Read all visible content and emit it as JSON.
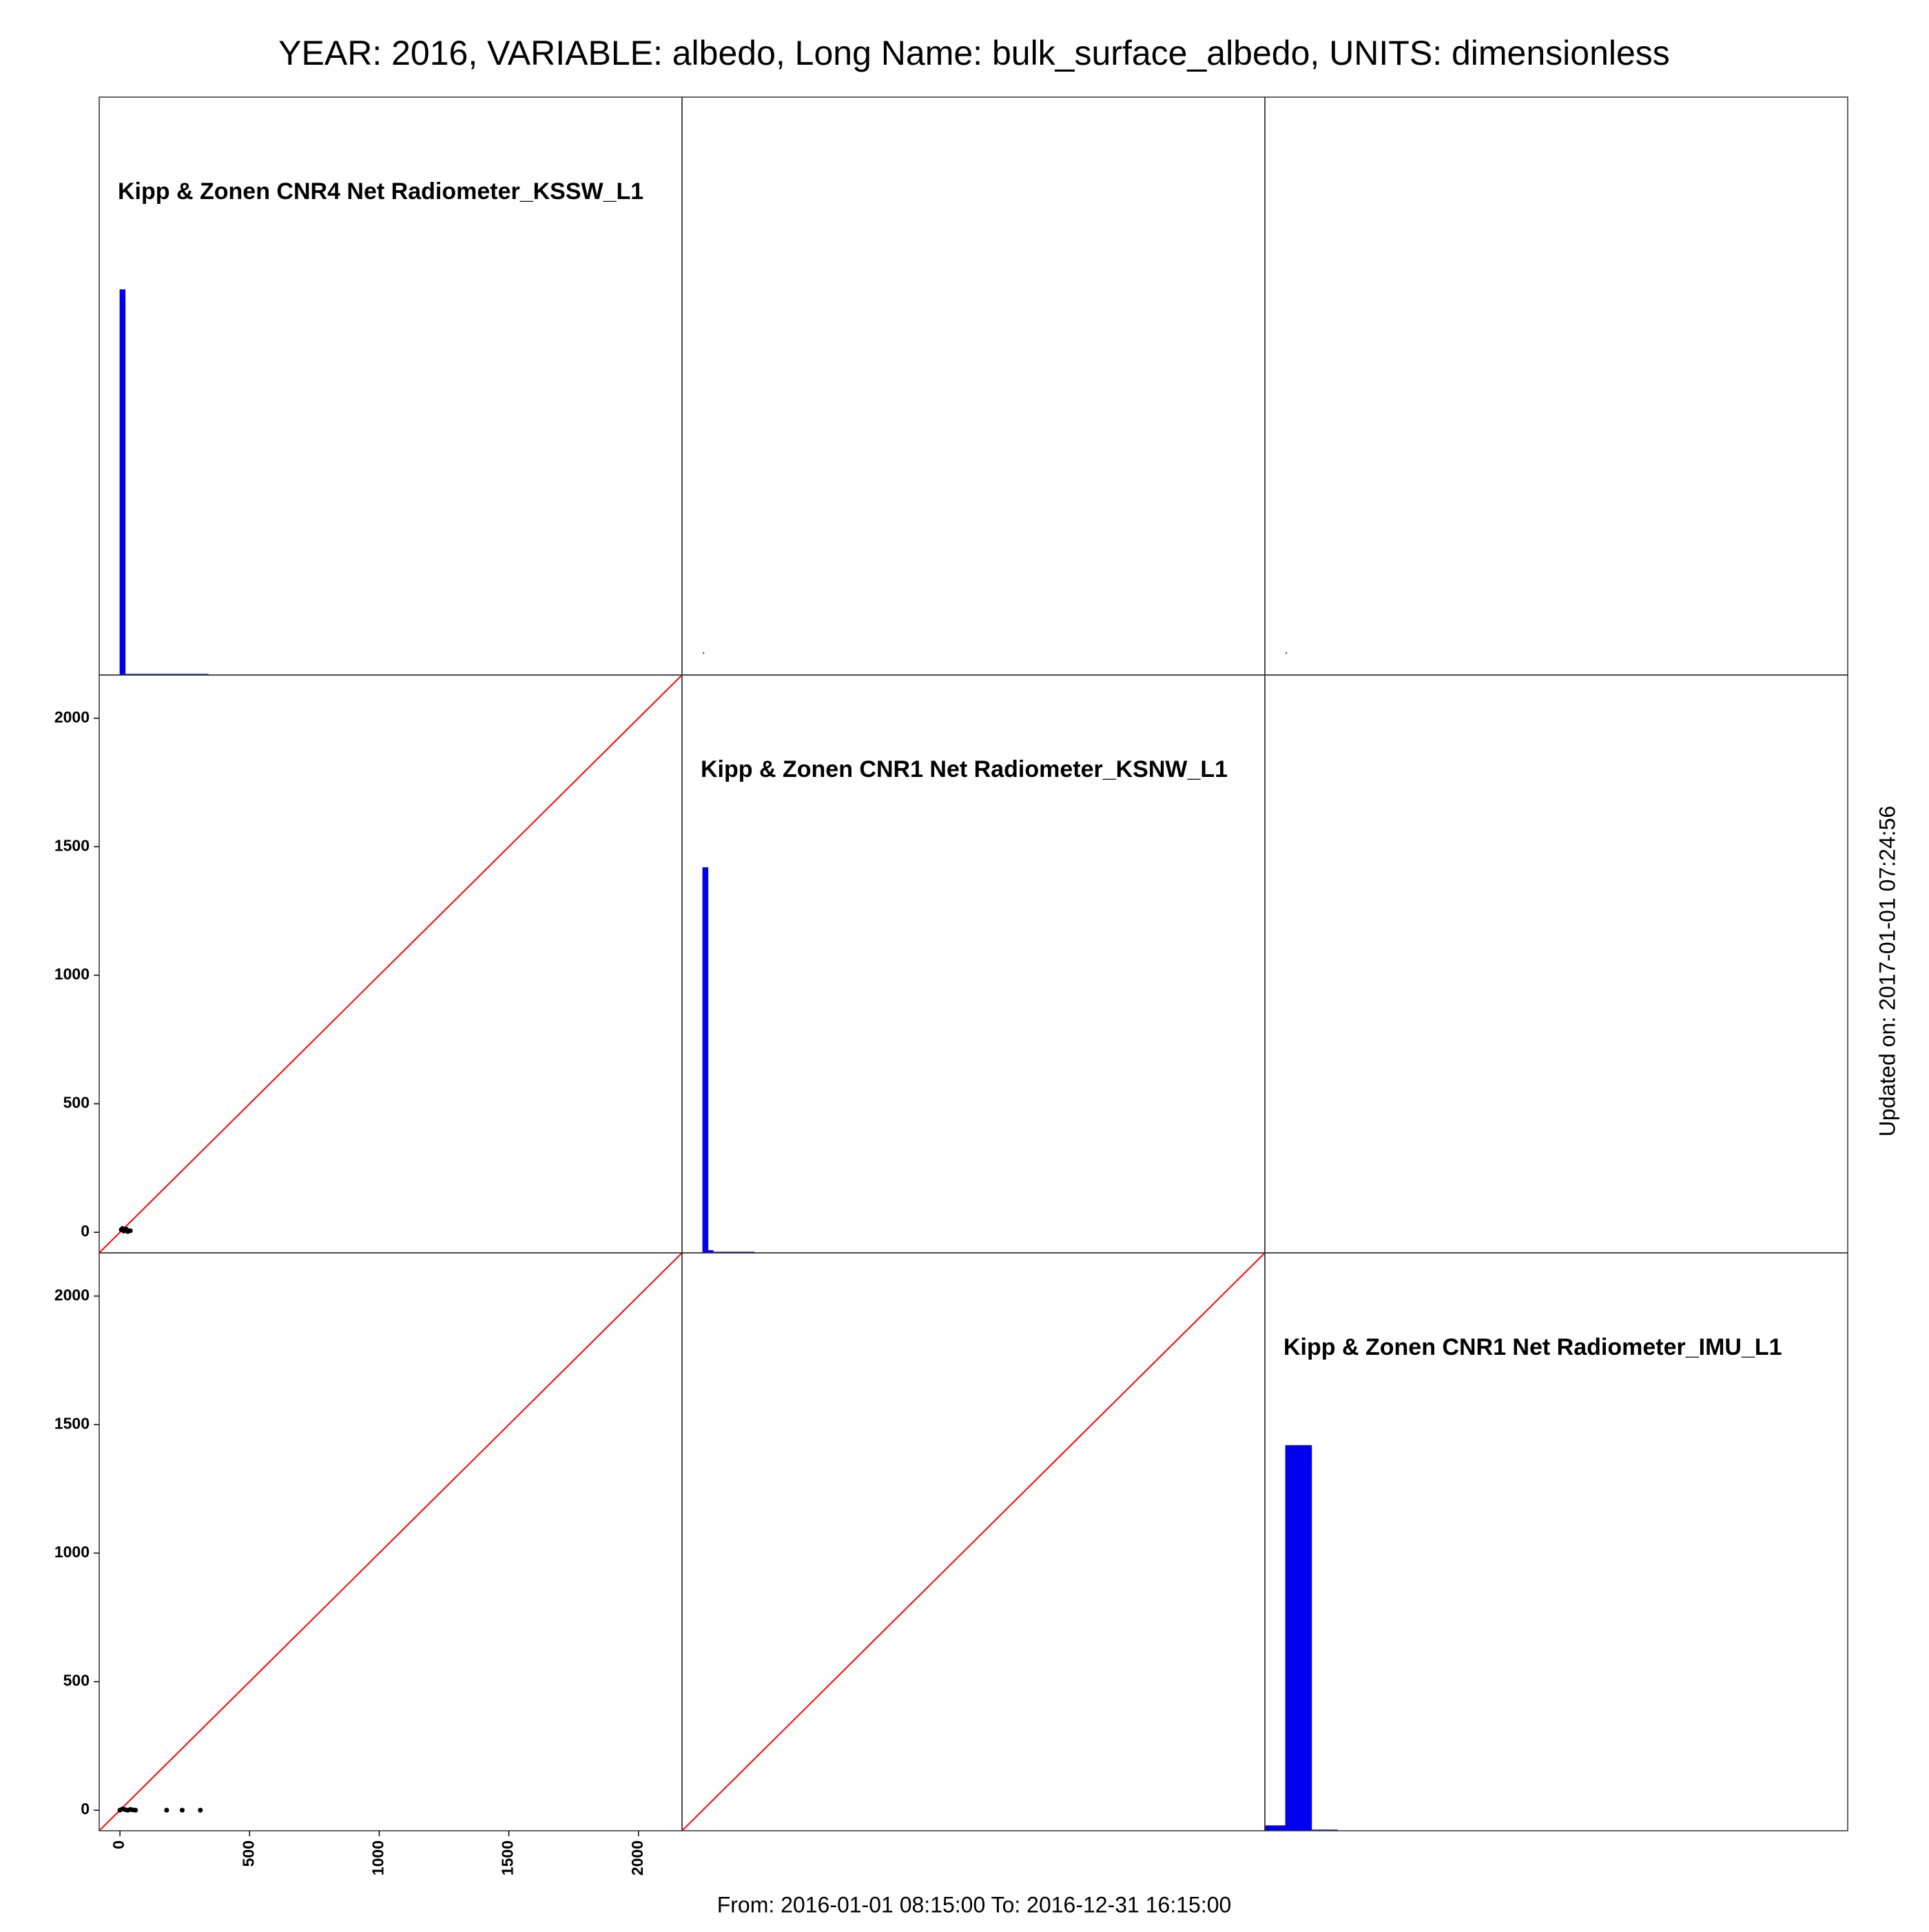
{
  "chart_data": {
    "type": "pairs",
    "title": "YEAR: 2016, VARIABLE: albedo, Long Name: bulk_surface_albedo, UNITS: dimensionless",
    "subtitle": "From: 2016-01-01 08:15:00 To: 2016-12-31 16:15:00",
    "note": "Updated on: 2017-01-01 07:24:56",
    "xlim": [
      -80,
      2168
    ],
    "ylim": [
      -80,
      2168
    ],
    "xticks": [
      0,
      500,
      1000,
      1500,
      2000
    ],
    "yticks": [
      0,
      500,
      1000,
      1500,
      2000
    ],
    "hist_ylim": [
      0,
      1.5
    ],
    "bar_color": "#0000ee",
    "line_color": "#ff0000",
    "point_color": "#000000",
    "variables": [
      {
        "name": "Kipp & Zonen CNR4 Net Radiometer_KSSW_L1",
        "bins": [
          0,
          20,
          340
        ],
        "values": [
          1,
          0.002
        ]
      },
      {
        "name": "Kipp & Zonen CNR1 Net Radiometer_KSNW_L1",
        "bins": [
          0,
          20,
          40,
          200
        ],
        "values": [
          1,
          0.006,
          0.002
        ]
      },
      {
        "name": "Kipp & Zonen CNR1 Net Radiometer_IMU_L1",
        "bins": [
          -100,
          0,
          100,
          200
        ],
        "values": [
          0.013,
          1,
          0.002
        ]
      }
    ],
    "scatter": [
      [
        null,
        {
          "x": [
            3
          ],
          "y": [
            5
          ]
        },
        {
          "x": [
            3
          ],
          "y": [
            5
          ]
        }
      ],
      [
        {
          "x": [
            5,
            10,
            15,
            20,
            25,
            30,
            40
          ],
          "y": [
            10,
            15,
            5,
            8,
            12,
            3,
            6
          ]
        },
        null,
        {
          "x": [],
          "y": []
        }
      ],
      [
        {
          "x": [
            0,
            10,
            20,
            30,
            40,
            50,
            60,
            180,
            240,
            310
          ],
          "y": [
            0,
            5,
            2,
            0,
            3,
            1,
            0,
            0,
            0,
            0
          ]
        },
        {
          "x": [],
          "y": []
        },
        null
      ]
    ]
  }
}
